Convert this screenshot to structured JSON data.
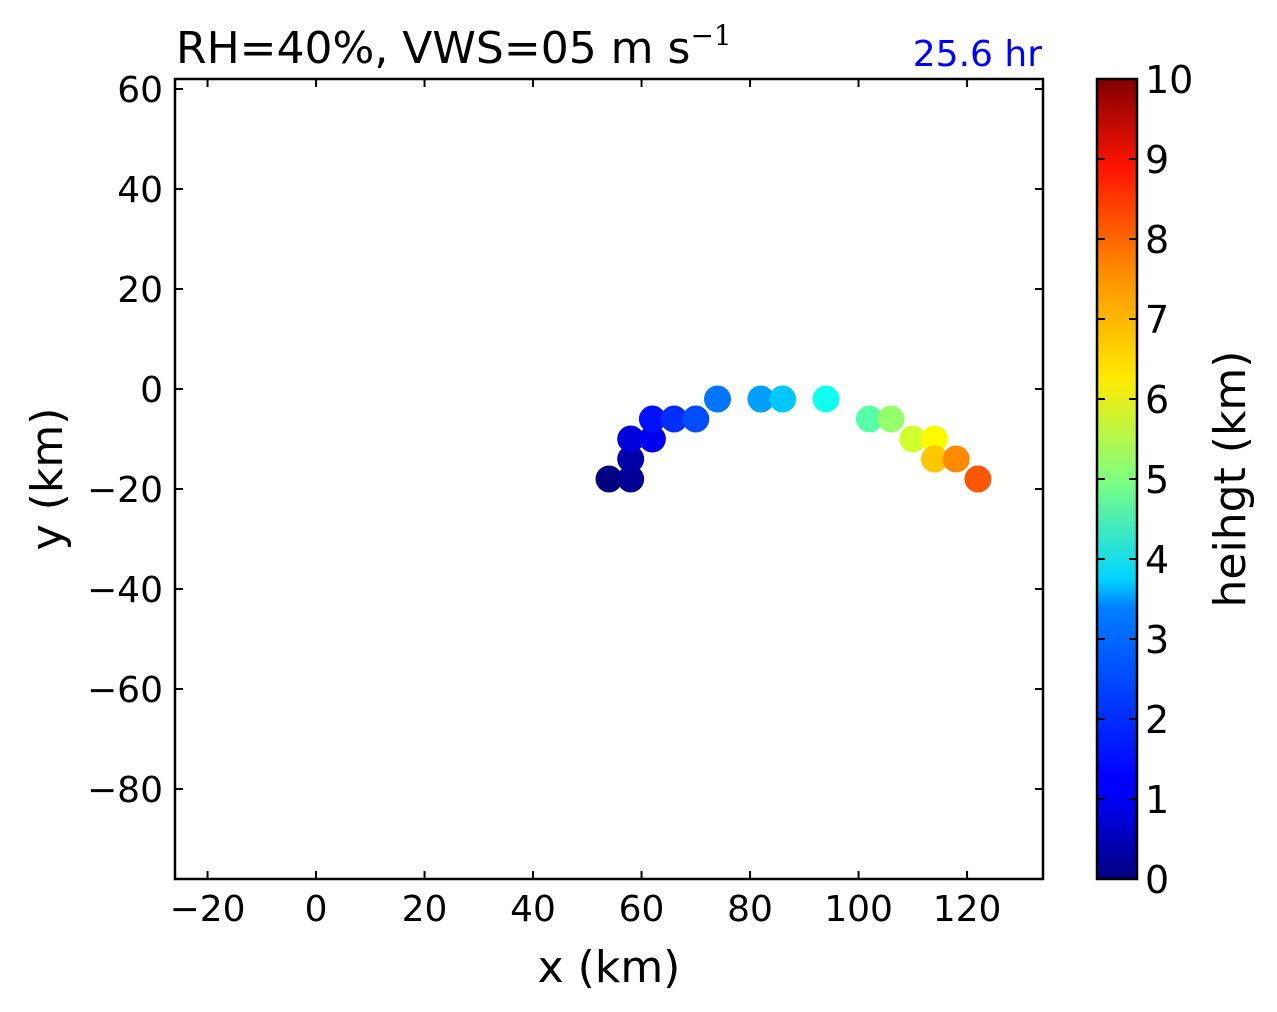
{
  "chart_data": {
    "type": "scatter",
    "title_main": "RH=40%, VWS=05 m s",
    "title_exponent": "−1",
    "time_label": "25.6 hr",
    "time_label_color": "#0000ff",
    "xlabel": "x (km)",
    "ylabel": "y (km)",
    "xlim": [
      -26,
      134
    ],
    "ylim": [
      -98,
      62
    ],
    "xticks": [
      -20,
      0,
      20,
      40,
      60,
      80,
      100,
      120
    ],
    "xtick_labels": [
      "−20",
      "0",
      "20",
      "40",
      "60",
      "80",
      "100",
      "120"
    ],
    "yticks": [
      60,
      40,
      20,
      0,
      -20,
      -40,
      -60,
      -80
    ],
    "ytick_labels": [
      "60",
      "40",
      "20",
      "0",
      "−20",
      "−40",
      "−60",
      "−80"
    ],
    "grid": false,
    "colormap": "jet",
    "colorbar": {
      "label": "heihgt (km)",
      "range": [
        0,
        10
      ],
      "ticks": [
        0,
        1,
        2,
        3,
        4,
        5,
        6,
        7,
        8,
        9,
        10
      ],
      "tick_labels": [
        "0",
        "1",
        "2",
        "3",
        "4",
        "5",
        "6",
        "7",
        "8",
        "9",
        "10"
      ]
    },
    "points": [
      {
        "x": 54,
        "y": -18,
        "height": 0.0
      },
      {
        "x": 58,
        "y": -18,
        "height": 0.2
      },
      {
        "x": 58,
        "y": -14,
        "height": 0.4
      },
      {
        "x": 58,
        "y": -10,
        "height": 0.9
      },
      {
        "x": 62,
        "y": -10,
        "height": 1.1
      },
      {
        "x": 62,
        "y": -6,
        "height": 1.4
      },
      {
        "x": 66,
        "y": -6,
        "height": 1.7
      },
      {
        "x": 70,
        "y": -6,
        "height": 2.0
      },
      {
        "x": 74,
        "y": -2,
        "height": 2.4
      },
      {
        "x": 82,
        "y": -2,
        "height": 2.8
      },
      {
        "x": 86,
        "y": -2,
        "height": 3.2
      },
      {
        "x": 94,
        "y": -2,
        "height": 3.9
      },
      {
        "x": 102,
        "y": -6,
        "height": 4.6
      },
      {
        "x": 106,
        "y": -6,
        "height": 5.2
      },
      {
        "x": 110,
        "y": -10,
        "height": 5.8
      },
      {
        "x": 114,
        "y": -10,
        "height": 6.3
      },
      {
        "x": 114,
        "y": -14,
        "height": 6.8
      },
      {
        "x": 118,
        "y": -14,
        "height": 7.4
      },
      {
        "x": 122,
        "y": -18,
        "height": 7.9
      }
    ]
  }
}
